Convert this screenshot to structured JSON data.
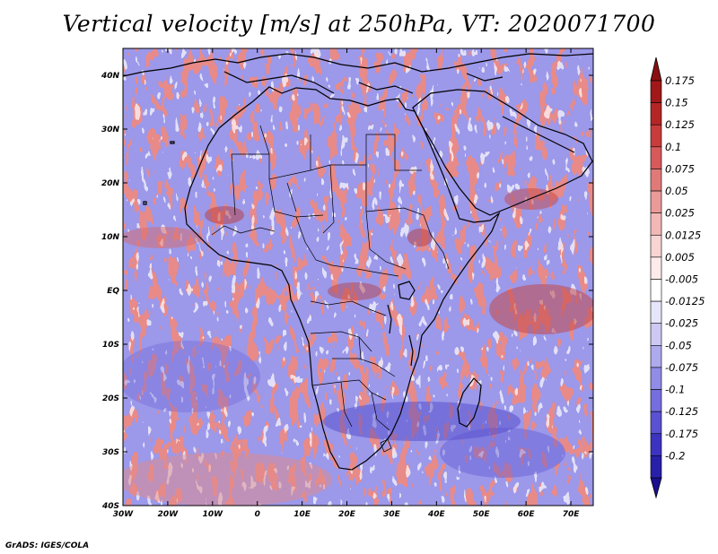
{
  "title": "Vertical velocity [m/s] at 250hPa, VT: 2020071700",
  "credit": "GrADS: IGES/COLA",
  "map": {
    "projection": "lat-lon",
    "lon_range": [
      -30,
      75
    ],
    "lat_range": [
      -40,
      45
    ],
    "lat_ticks": [
      {
        "value": 40,
        "label": "40N"
      },
      {
        "value": 30,
        "label": "30N"
      },
      {
        "value": 20,
        "label": "20N"
      },
      {
        "value": 10,
        "label": "10N"
      },
      {
        "value": 0,
        "label": "EQ"
      },
      {
        "value": -10,
        "label": "10S"
      },
      {
        "value": -20,
        "label": "20S"
      },
      {
        "value": -30,
        "label": "30S"
      },
      {
        "value": -40,
        "label": "40S"
      }
    ],
    "lon_ticks": [
      {
        "value": -30,
        "label": "30W"
      },
      {
        "value": -20,
        "label": "20W"
      },
      {
        "value": -10,
        "label": "10W"
      },
      {
        "value": 0,
        "label": "0"
      },
      {
        "value": 10,
        "label": "10E"
      },
      {
        "value": 20,
        "label": "20E"
      },
      {
        "value": 30,
        "label": "30E"
      },
      {
        "value": 40,
        "label": "40E"
      },
      {
        "value": 50,
        "label": "50E"
      },
      {
        "value": 60,
        "label": "60E"
      },
      {
        "value": 70,
        "label": "70E"
      }
    ]
  },
  "colorbar": {
    "levels": [
      {
        "label": "0.175",
        "color": "#a01818"
      },
      {
        "label": "0.15",
        "color": "#b42626"
      },
      {
        "label": "0.125",
        "color": "#c83c3c"
      },
      {
        "label": "0.1",
        "color": "#d65a5a"
      },
      {
        "label": "0.075",
        "color": "#e07a78"
      },
      {
        "label": "0.05",
        "color": "#ea9a98"
      },
      {
        "label": "0.025",
        "color": "#f2b8b6"
      },
      {
        "label": "0.0125",
        "color": "#f8d4d2"
      },
      {
        "label": "0.005",
        "color": "#fcebea"
      },
      {
        "label": "-0.005",
        "color": "#ffffff"
      },
      {
        "label": "-0.0125",
        "color": "#e6e6fa"
      },
      {
        "label": "-0.025",
        "color": "#cccaf4"
      },
      {
        "label": "-0.05",
        "color": "#aeaaee"
      },
      {
        "label": "-0.075",
        "color": "#918ce6"
      },
      {
        "label": "-0.1",
        "color": "#756ede"
      },
      {
        "label": "-0.125",
        "color": "#5a52d2"
      },
      {
        "label": "-0.175",
        "color": "#3c34c0"
      },
      {
        "label": "-0.2",
        "color": "#2820a8"
      }
    ],
    "top_arrow_color": "#8a1010",
    "bottom_arrow_color": "#1a1090"
  }
}
